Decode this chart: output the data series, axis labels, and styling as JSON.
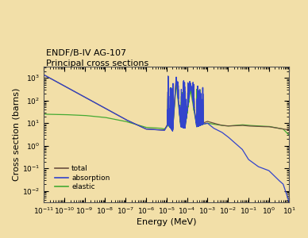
{
  "title_line1": "ENDF/B-IV AG-107",
  "title_line2": "Principal cross sections",
  "xlabel": "Energy (MeV)",
  "ylabel": "Cross section (barns)",
  "background_color": "#f2dfa8",
  "plot_bg_color": "#f2dfa8",
  "legend_labels": [
    "total",
    "absorption",
    "elastic"
  ],
  "line_colors": {
    "total": "#6b5040",
    "absorption": "#3344cc",
    "elastic": "#44aa33"
  },
  "xlim": [
    -11,
    1
  ],
  "ylim": [
    -2.5,
    3.5
  ]
}
